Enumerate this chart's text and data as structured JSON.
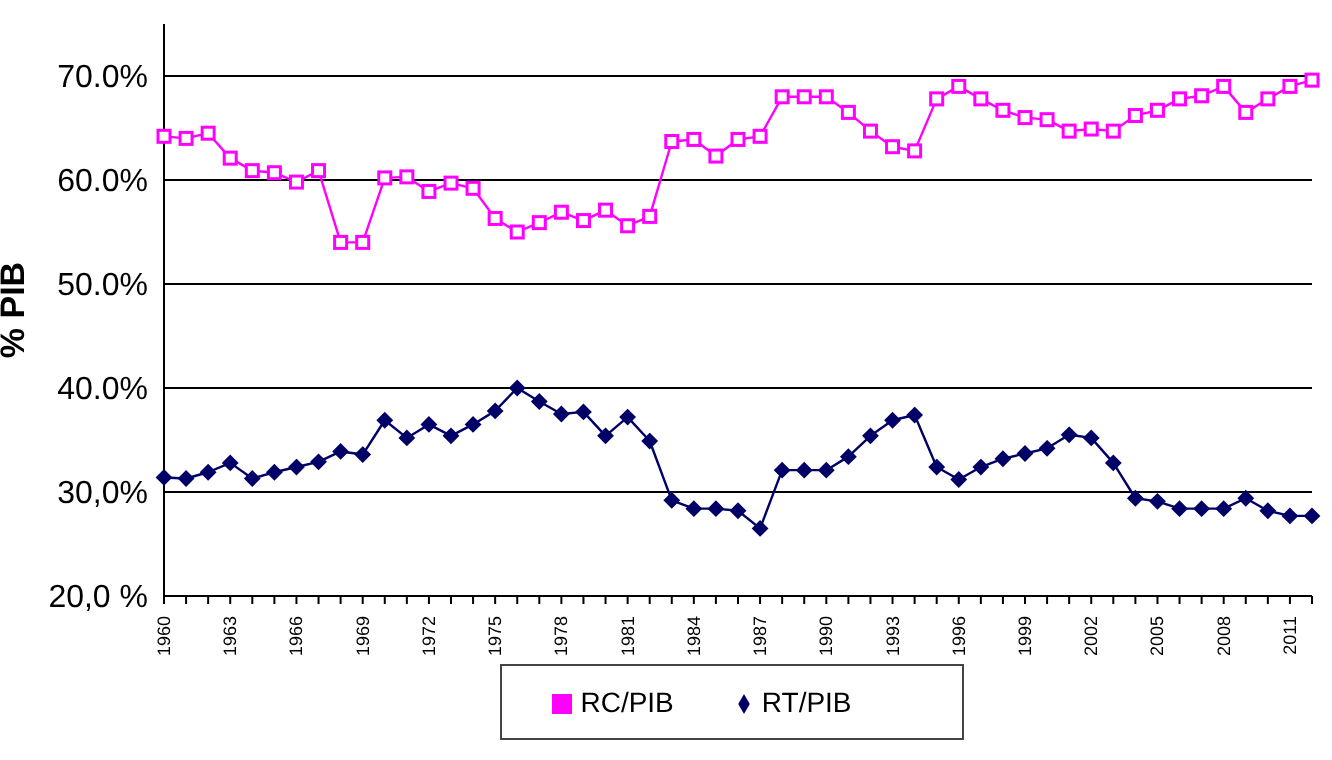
{
  "chart_data": {
    "type": "line",
    "ylabel": "% PIB",
    "categories": [
      "1960",
      null,
      null,
      "1963",
      null,
      null,
      "1966",
      null,
      null,
      "1969",
      null,
      null,
      "1972",
      null,
      null,
      "1975",
      null,
      null,
      "1978",
      null,
      null,
      "1981",
      null,
      null,
      "1984",
      null,
      null,
      "1987",
      null,
      null,
      "1990",
      null,
      null,
      "1993",
      null,
      null,
      "1996",
      null,
      null,
      "1999",
      null,
      null,
      "2002",
      null,
      null,
      "2005",
      null,
      null,
      "2008",
      null,
      null,
      "2011",
      null
    ],
    "series": [
      {
        "name": "RT/PIB",
        "color": "#000066",
        "marker": "diamond",
        "values": [
          31.4,
          31.3,
          31.9,
          32.8,
          31.3,
          31.9,
          32.4,
          32.9,
          33.9,
          33.6,
          36.9,
          35.2,
          36.5,
          35.4,
          36.5,
          37.8,
          40.0,
          38.7,
          37.5,
          37.7,
          35.4,
          37.2,
          34.9,
          29.2,
          28.4,
          28.4,
          28.2,
          26.5,
          32.1,
          32.1,
          32.1,
          33.4,
          35.4,
          36.9,
          37.4,
          32.4,
          31.2,
          32.4,
          33.2,
          33.7,
          34.2,
          35.5,
          35.2,
          32.8,
          29.4,
          29.1,
          28.4,
          28.4,
          28.4,
          29.4,
          28.2,
          27.7,
          27.7
        ]
      },
      {
        "name": "RC/PIB",
        "color": "#ff00ff",
        "marker": "square",
        "values": [
          64.2,
          64.0,
          64.5,
          62.1,
          60.9,
          60.7,
          59.8,
          60.9,
          54.0,
          54.0,
          60.2,
          60.3,
          58.9,
          59.7,
          59.2,
          56.3,
          55.0,
          55.9,
          56.9,
          56.1,
          57.1,
          55.6,
          56.5,
          63.7,
          63.9,
          62.3,
          63.9,
          64.2,
          68.0,
          68.0,
          68.0,
          66.5,
          64.7,
          63.2,
          62.8,
          67.8,
          69.0,
          67.8,
          66.7,
          66.0,
          65.8,
          64.7,
          64.9,
          64.7,
          66.2,
          66.7,
          67.8,
          68.1,
          69.0,
          66.5,
          67.8,
          69.0,
          69.6
        ]
      }
    ],
    "ylim": [
      20,
      75
    ],
    "yticks": [
      {
        "value": 20,
        "label": "20,0 %"
      },
      {
        "value": 30,
        "label": "30,0%"
      },
      {
        "value": 40,
        "label": "40.0%"
      },
      {
        "value": 50,
        "label": "50.0%"
      },
      {
        "value": 60,
        "label": "60.0%"
      },
      {
        "value": 70,
        "label": "70.0%"
      }
    ],
    "grid": "y",
    "legend": "bottom"
  }
}
